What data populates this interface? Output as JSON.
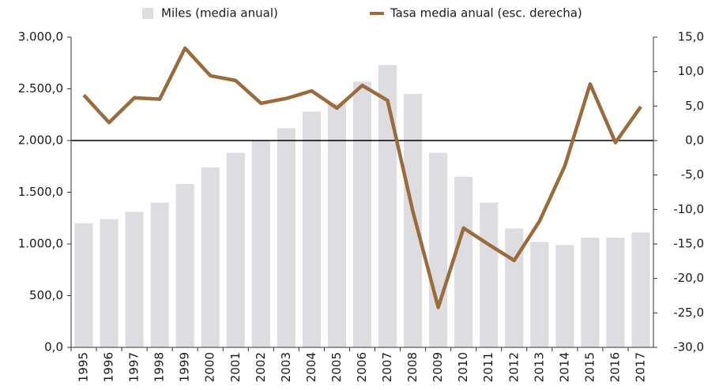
{
  "chart_data": {
    "type": "bar",
    "categories": [
      "1995",
      "1996",
      "1997",
      "1998",
      "1999",
      "2000",
      "2001",
      "2002",
      "2003",
      "2004",
      "2005",
      "2006",
      "2007",
      "2008",
      "2009",
      "2010",
      "2011",
      "2012",
      "2013",
      "2014",
      "2015",
      "2016",
      "2017"
    ],
    "series": [
      {
        "name": "Miles (media anual)",
        "type": "bar",
        "color": "#dcdce1",
        "values": [
          1200,
          1240,
          1310,
          1400,
          1580,
          1740,
          1880,
          2000,
          2120,
          2280,
          2360,
          2570,
          2730,
          2450,
          1880,
          1650,
          1400,
          1150,
          1020,
          990,
          1060,
          1060,
          1110
        ]
      },
      {
        "name": "Tasa media anual (esc. derecha)",
        "type": "line",
        "color": "#9a6b3c",
        "axis": "y2",
        "values": [
          6.6,
          2.6,
          6.2,
          6.0,
          13.4,
          9.4,
          8.7,
          5.4,
          6.1,
          7.2,
          4.7,
          8.0,
          5.8,
          -10.3,
          -24.2,
          -12.7,
          -15.1,
          -17.4,
          -11.7,
          -3.7,
          8.2,
          -0.3,
          4.9
        ]
      }
    ],
    "ylim": [
      0,
      3000
    ],
    "yticks": [
      {
        "value": 0,
        "label": "0,0"
      },
      {
        "value": 500,
        "label": "500,0"
      },
      {
        "value": 1000,
        "label": "1.000,0"
      },
      {
        "value": 1500,
        "label": "1.500,0"
      },
      {
        "value": 2000,
        "label": "2.000,0"
      },
      {
        "value": 2500,
        "label": "2.500,0"
      },
      {
        "value": 3000,
        "label": "3.000,0"
      }
    ],
    "y2lim": [
      -30,
      15
    ],
    "y2ticks": [
      {
        "value": -30,
        "label": "-30,0"
      },
      {
        "value": -25,
        "label": "-25,0"
      },
      {
        "value": -20,
        "label": "-20,0"
      },
      {
        "value": -15,
        "label": "-15,0"
      },
      {
        "value": -10,
        "label": "-10,0"
      },
      {
        "value": -5,
        "label": "-5,0"
      },
      {
        "value": 0,
        "label": "0,0"
      },
      {
        "value": 5,
        "label": "5,0"
      },
      {
        "value": 10,
        "label": "10,0"
      },
      {
        "value": 15,
        "label": "15,0"
      }
    ],
    "legend": "top"
  }
}
